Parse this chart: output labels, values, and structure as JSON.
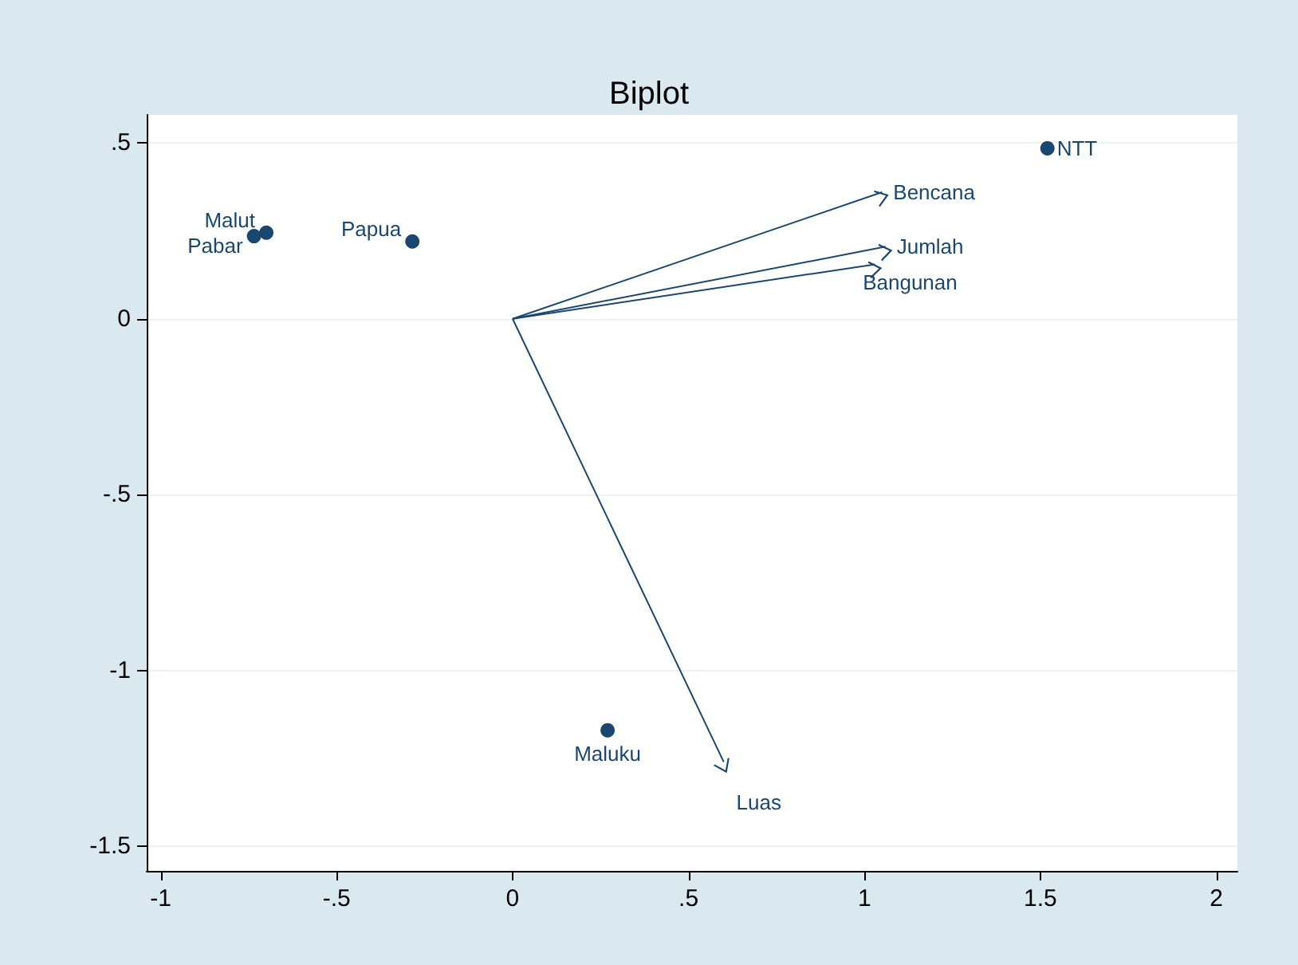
{
  "chart_data": {
    "type": "scatter",
    "title": "Biplot",
    "xlim": [
      -1.04,
      2.06
    ],
    "ylim": [
      -1.57,
      0.58
    ],
    "xticks": [
      -1,
      {
        "value": -0.5,
        "label": "-.5"
      },
      0,
      {
        "value": 0.5,
        "label": ".5"
      },
      1,
      1.5,
      2
    ],
    "yticks": [
      {
        "value": -1.5,
        "label": "-1.5"
      },
      -1,
      {
        "value": -0.5,
        "label": "-.5"
      },
      0,
      {
        "value": 0.5,
        "label": ".5"
      }
    ],
    "grid": "y",
    "line_style": "solid",
    "series": [
      {
        "marker": "circle",
        "color": "#1a476f",
        "x": [
          -0.7,
          -0.735,
          -0.285,
          1.52,
          0.27
        ],
        "values": [
          0.245,
          0.235,
          0.22,
          0.485,
          -1.17
        ]
      },
      {
        "type": "line",
        "color": "#1a476f",
        "x": [
          0,
          1.05
        ],
        "values": [
          0,
          0.36
        ]
      },
      {
        "type": "line",
        "color": "#1a476f",
        "x": [
          0,
          1.06
        ],
        "values": [
          0,
          0.205
        ]
      },
      {
        "type": "line",
        "color": "#1a476f",
        "x": [
          0,
          1.03
        ],
        "values": [
          0,
          0.155
        ]
      },
      {
        "type": "line",
        "color": "#1a476f",
        "x": [
          0,
          0.6
        ],
        "values": [
          0,
          -1.26
        ]
      }
    ],
    "annotations": [
      {
        "text": "Malut",
        "x": -0.7,
        "y": 0.245
      },
      {
        "text": "Pabar",
        "x": -0.735,
        "y": 0.235
      },
      {
        "text": "Papua",
        "x": -0.285,
        "y": 0.22
      },
      {
        "text": "NTT",
        "x": 1.52,
        "y": 0.485
      },
      {
        "text": "Maluku",
        "x": 0.27,
        "y": -1.17
      },
      {
        "text": "Bencana",
        "x": 1.05,
        "y": 0.36
      },
      {
        "text": "Jumlah",
        "x": 1.06,
        "y": 0.205
      },
      {
        "text": "Bangunan",
        "x": 1.03,
        "y": 0.155
      },
      {
        "text": "Luas",
        "x": 0.6,
        "y": -1.26
      }
    ]
  }
}
